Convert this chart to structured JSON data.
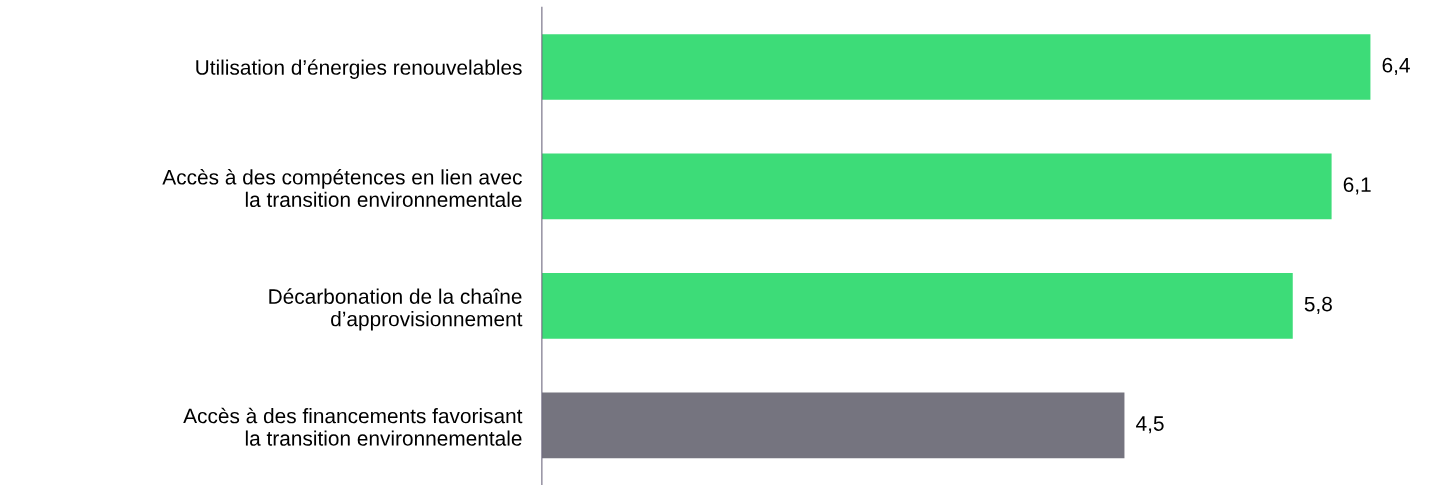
{
  "chart_data": {
    "type": "bar",
    "orientation": "horizontal",
    "categories": [
      "Utilisation d’énergies renouvelables",
      "Accès à des compétences en lien avec\nla transition environnementale",
      "Décarbonation de la chaîne\nd’approvisionnement",
      "Accès à des financements favorisant\nla transition environnementale"
    ],
    "values": [
      6.4,
      6.1,
      5.8,
      4.5
    ],
    "value_labels": [
      "6,4",
      "6,1",
      "5,8",
      "4,5"
    ],
    "colors": [
      "#3ddc78",
      "#3ddc78",
      "#3ddc78",
      "#75747f"
    ],
    "tick_labels": "y"
  }
}
